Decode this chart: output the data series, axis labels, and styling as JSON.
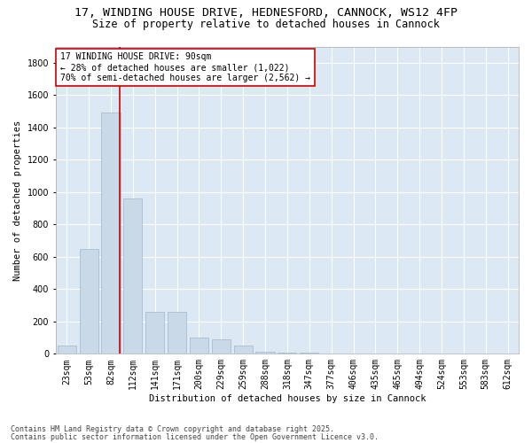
{
  "title_line1": "17, WINDING HOUSE DRIVE, HEDNESFORD, CANNOCK, WS12 4FP",
  "title_line2": "Size of property relative to detached houses in Cannock",
  "xlabel": "Distribution of detached houses by size in Cannock",
  "ylabel": "Number of detached properties",
  "categories": [
    "23sqm",
    "53sqm",
    "82sqm",
    "112sqm",
    "141sqm",
    "171sqm",
    "200sqm",
    "229sqm",
    "259sqm",
    "288sqm",
    "318sqm",
    "347sqm",
    "377sqm",
    "406sqm",
    "435sqm",
    "465sqm",
    "494sqm",
    "524sqm",
    "553sqm",
    "583sqm",
    "612sqm"
  ],
  "values": [
    50,
    650,
    1490,
    960,
    260,
    260,
    100,
    90,
    50,
    15,
    10,
    5,
    3,
    2,
    1,
    1,
    0,
    0,
    0,
    0,
    0
  ],
  "bar_color": "#c9d9e8",
  "bar_edge_color": "#9fb8cc",
  "vline_x": 2.42,
  "vline_color": "#cc0000",
  "annotation_text": "17 WINDING HOUSE DRIVE: 90sqm\n← 28% of detached houses are smaller (1,022)\n70% of semi-detached houses are larger (2,562) →",
  "annotation_box_color": "#ffffff",
  "annotation_box_edge": "#cc0000",
  "ylim": [
    0,
    1900
  ],
  "yticks": [
    0,
    200,
    400,
    600,
    800,
    1000,
    1200,
    1400,
    1600,
    1800
  ],
  "plot_bg_color": "#dce9f5",
  "footer_line1": "Contains HM Land Registry data © Crown copyright and database right 2025.",
  "footer_line2": "Contains public sector information licensed under the Open Government Licence v3.0.",
  "title_fontsize": 9.5,
  "subtitle_fontsize": 8.5,
  "axis_label_fontsize": 7.5,
  "tick_fontsize": 7,
  "annotation_fontsize": 7,
  "footer_fontsize": 6
}
